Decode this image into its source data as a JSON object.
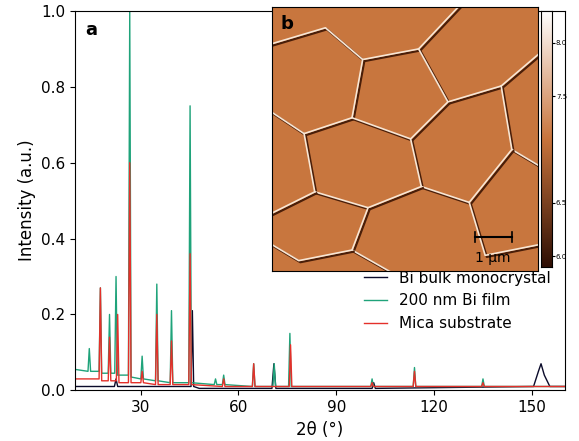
{
  "chart_data": {
    "type": "line",
    "xlabel": "2θ (°)",
    "ylabel": "Intensity (a.u.)",
    "xlim": [
      10,
      160
    ],
    "xticks": [
      30,
      60,
      90,
      120,
      150
    ],
    "ylim": [
      0.0,
      1.0
    ],
    "yticks": [
      0.0,
      0.2,
      0.4,
      0.6,
      0.8,
      1.0
    ],
    "legend": "lower right",
    "annotations": [
      {
        "text": "a"
      }
    ],
    "series": [
      {
        "name": "Bi bulk monocrystal",
        "color": "#0a0a2a",
        "x": [
          10,
          22.0,
          22.5,
          23.0,
          44.0,
          45.5,
          45.9,
          46.3,
          48.0,
          70.3,
          70.9,
          71.5,
          101.0,
          101.5,
          102.0,
          150.5,
          152.0,
          152.8,
          153.8,
          155.5,
          160
        ],
        "values": [
          0.01,
          0.01,
          0.03,
          0.01,
          0.01,
          0.01,
          0.21,
          0.01,
          0.005,
          0.005,
          0.07,
          0.005,
          0.005,
          0.02,
          0.005,
          0.01,
          0.05,
          0.07,
          0.04,
          0.01,
          0.01
        ]
      },
      {
        "name": "200 nm Bi film",
        "color": "#1fa37a",
        "x": [
          10,
          13.9,
          14.3,
          14.7,
          17.3,
          17.7,
          18.1,
          20.1,
          20.5,
          20.9,
          22.1,
          22.5,
          22.9,
          26.3,
          26.7,
          27.1,
          30.1,
          30.5,
          30.9,
          34.6,
          35.0,
          35.4,
          39.1,
          39.5,
          39.9,
          44.8,
          45.2,
          45.6,
          52.6,
          53.0,
          53.4,
          55.1,
          55.5,
          55.9,
          64.3,
          64.7,
          65.1,
          70.6,
          71.0,
          71.4,
          75.4,
          75.8,
          76.2,
          100.6,
          101.0,
          101.4,
          113.6,
          114.0,
          114.4,
          134.6,
          135.0,
          135.4,
          160
        ],
        "values": [
          0.055,
          0.05,
          0.11,
          0.05,
          0.05,
          0.27,
          0.045,
          0.045,
          0.2,
          0.045,
          0.045,
          0.3,
          0.04,
          0.04,
          1.0,
          0.035,
          0.03,
          0.09,
          0.03,
          0.025,
          0.28,
          0.025,
          0.02,
          0.21,
          0.02,
          0.02,
          0.75,
          0.02,
          0.015,
          0.03,
          0.015,
          0.015,
          0.04,
          0.015,
          0.01,
          0.07,
          0.01,
          0.01,
          0.07,
          0.01,
          0.01,
          0.15,
          0.01,
          0.01,
          0.03,
          0.01,
          0.01,
          0.06,
          0.01,
          0.01,
          0.03,
          0.01,
          0.01
        ]
      },
      {
        "name": "Mica substrate",
        "color": "#e4302a",
        "x": [
          10,
          17.3,
          17.7,
          18.1,
          20.1,
          20.5,
          20.9,
          22.6,
          23.0,
          23.4,
          26.3,
          26.7,
          27.1,
          30.1,
          30.5,
          30.9,
          34.6,
          35.0,
          35.4,
          39.1,
          39.5,
          39.9,
          44.8,
          45.2,
          45.6,
          55.1,
          55.5,
          55.9,
          64.3,
          64.7,
          65.1,
          75.6,
          76.0,
          76.4,
          100.6,
          101.0,
          101.4,
          113.6,
          114.0,
          114.4,
          134.6,
          135.0,
          135.4,
          160
        ],
        "values": [
          0.03,
          0.03,
          0.27,
          0.025,
          0.025,
          0.14,
          0.025,
          0.025,
          0.2,
          0.02,
          0.02,
          0.6,
          0.02,
          0.02,
          0.05,
          0.02,
          0.015,
          0.2,
          0.015,
          0.015,
          0.13,
          0.015,
          0.015,
          0.36,
          0.015,
          0.01,
          0.03,
          0.01,
          0.01,
          0.07,
          0.01,
          0.01,
          0.12,
          0.01,
          0.01,
          0.02,
          0.01,
          0.01,
          0.05,
          0.01,
          0.01,
          0.02,
          0.01,
          0.01
        ]
      }
    ],
    "inset": {
      "label": "b",
      "scale_bar": "1 μm",
      "colorbar_range": [
        5.9,
        8.3
      ],
      "colorbar_ticks": [
        6.0,
        6.5,
        7.5,
        8.0
      ]
    }
  }
}
